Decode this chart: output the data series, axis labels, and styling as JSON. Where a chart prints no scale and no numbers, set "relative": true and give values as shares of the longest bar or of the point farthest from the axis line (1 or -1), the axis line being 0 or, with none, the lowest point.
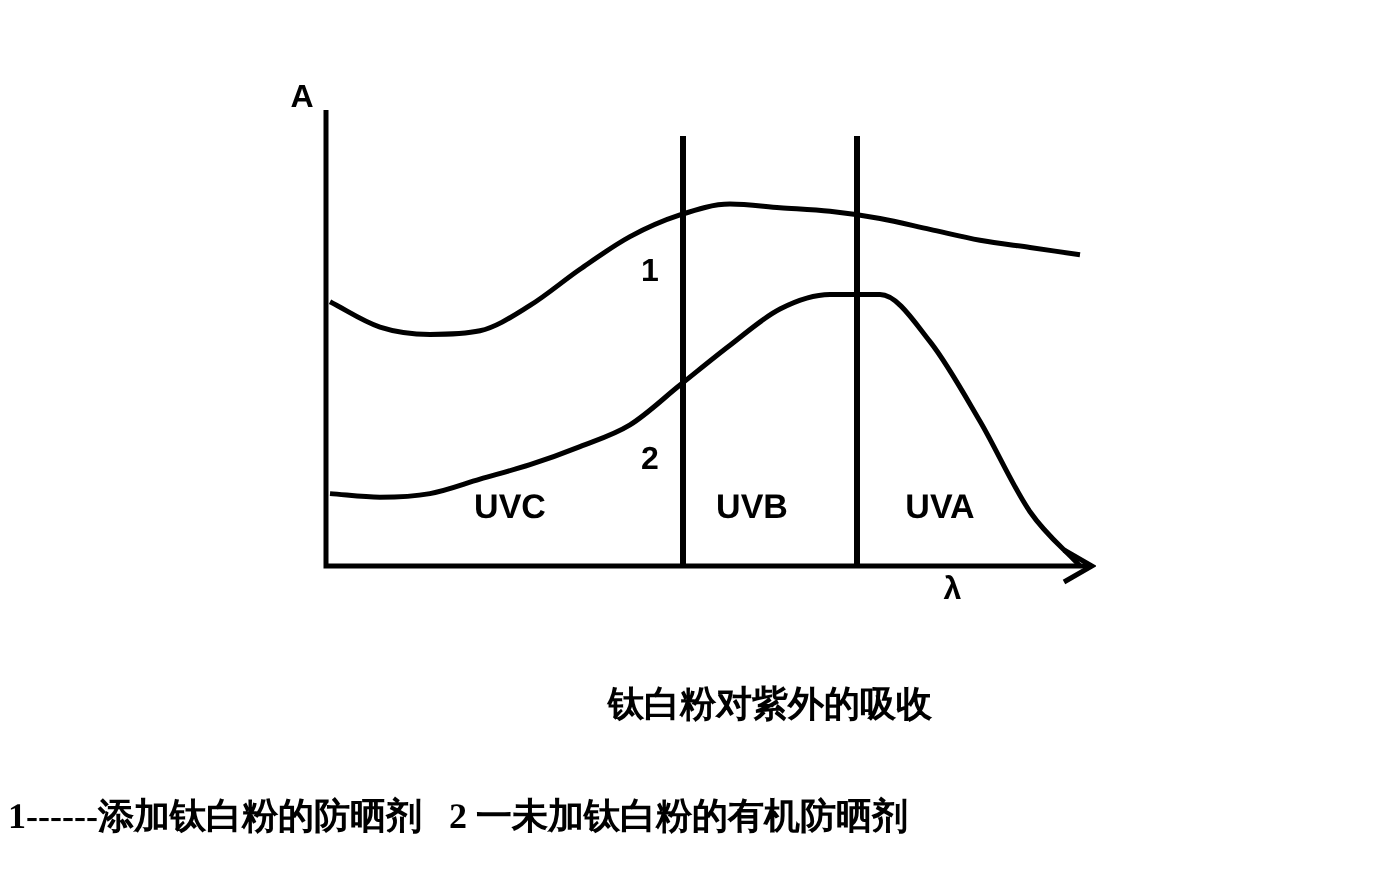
{
  "chart_data": {
    "type": "line",
    "title": "钛白粉对紫外的吸收",
    "xlabel": "λ",
    "ylabel": "A",
    "relative": true,
    "legend": false,
    "marker": "none",
    "line_style": "solid",
    "categories": [
      null,
      null,
      null,
      null,
      null,
      null,
      null,
      null,
      null,
      null,
      null,
      null,
      null,
      null,
      null,
      null
    ],
    "series": [
      {
        "name": "1",
        "color": "#000000",
        "values": [
          0.73,
          0.66,
          0.64,
          0.65,
          0.72,
          0.82,
          0.91,
          0.97,
          1,
          0.99,
          0.98,
          0.96,
          0.93,
          0.9,
          0.88,
          0.86
        ]
      },
      {
        "name": "2",
        "color": "#000000",
        "values": [
          0.2,
          0.19,
          0.2,
          0.24,
          0.28,
          0.33,
          0.39,
          0.5,
          0.61,
          0.71,
          0.75,
          0.75,
          0.62,
          0.4,
          0.15,
          0
        ]
      }
    ],
    "annotations": [
      "UVC",
      "UVB",
      "UVA",
      "1------添加钛白粉的防晒剂   2 一未加钛白粉的有机防晒剂"
    ]
  }
}
